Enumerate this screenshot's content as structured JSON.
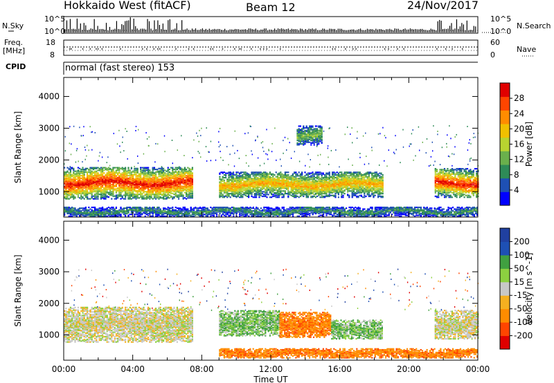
{
  "header": {
    "station": "Hokkaido West (fitACF)",
    "beam": "Beam 12",
    "date": "24/Nov/2017"
  },
  "top_panels": {
    "nsky_label": "N.Sky",
    "nsearch_label": "N.Search",
    "freq_label_1": "Freq.",
    "freq_label_2": "[MHz]",
    "nave_label": "Nave",
    "cpid_label": "CPID",
    "cpid_value": "normal (fast stereo) 153",
    "noise_left_ticks": [
      "10^5",
      "10^0"
    ],
    "noise_right_ticks": [
      "10^5",
      "10^0"
    ],
    "freq_ticks": [
      "18",
      "8"
    ],
    "nave_ticks": [
      "60",
      "0"
    ]
  },
  "colors": {
    "power_scale": [
      "#0000ff",
      "#1e50b4",
      "#2e8b57",
      "#6ab04c",
      "#b8d430",
      "#f0c000",
      "#ff8c00",
      "#ff4500",
      "#e00000"
    ],
    "velocity_scale": [
      "#e00000",
      "#ff4500",
      "#ff8c00",
      "#f5b020",
      "#c8c8c8",
      "#8cd040",
      "#40a040",
      "#1e50b4",
      "#2040a0"
    ]
  },
  "chart_data": [
    {
      "type": "heatmap",
      "panel": "power",
      "xlabel": "Time UT",
      "ylabel": "Slant Range [km]",
      "x_ticks": [
        "00:00",
        "04:00",
        "08:00",
        "12:00",
        "16:00",
        "20:00",
        "00:00"
      ],
      "xlim_hours": [
        0,
        24
      ],
      "y_ticks": [
        1000,
        2000,
        3000,
        4000
      ],
      "ylim": [
        200,
        4600
      ],
      "colorbar_label": "Power [dB]",
      "colorbar_ticks": [
        4,
        8,
        12,
        16,
        20,
        24,
        28
      ],
      "colorbar_range": [
        0,
        32
      ],
      "regions": [
        {
          "t_start": 0.0,
          "t_end": 7.5,
          "range_center": 1300,
          "range_halfwidth": 500,
          "peak": 30
        },
        {
          "t_start": 9.0,
          "t_end": 18.5,
          "range_center": 1250,
          "range_halfwidth": 400,
          "peak": 22
        },
        {
          "t_start": 21.5,
          "t_end": 24.0,
          "range_center": 1300,
          "range_halfwidth": 450,
          "peak": 30
        },
        {
          "t_start": 13.5,
          "t_end": 15.0,
          "range_center": 2800,
          "range_halfwidth": 300,
          "peak": 14
        },
        {
          "t_start": 0.0,
          "t_end": 24.0,
          "range_center": 400,
          "range_halfwidth": 150,
          "peak": 10
        }
      ]
    },
    {
      "type": "heatmap",
      "panel": "velocity",
      "xlabel": "Time UT",
      "ylabel": "Slant Range [km]",
      "x_ticks": [
        "00:00",
        "04:00",
        "08:00",
        "12:00",
        "16:00",
        "20:00",
        "00:00"
      ],
      "xlim_hours": [
        0,
        24
      ],
      "y_ticks": [
        1000,
        2000,
        3000,
        4000
      ],
      "ylim": [
        200,
        4600
      ],
      "colorbar_label": "Velocity [m s^-1]",
      "colorbar_ticks": [
        "200",
        "100",
        "50",
        "15",
        "-15",
        "-50",
        "-100",
        "-200"
      ],
      "regions": [
        {
          "t_start": 0.0,
          "t_end": 7.5,
          "range_center": 1350,
          "range_halfwidth": 550,
          "velocity": 0
        },
        {
          "t_start": 9.0,
          "t_end": 12.5,
          "range_center": 1400,
          "range_halfwidth": 400,
          "velocity": 30
        },
        {
          "t_start": 12.5,
          "t_end": 15.5,
          "range_center": 1350,
          "range_halfwidth": 400,
          "velocity": -60
        },
        {
          "t_start": 15.5,
          "t_end": 18.5,
          "range_center": 1200,
          "range_halfwidth": 300,
          "velocity": 30
        },
        {
          "t_start": 21.5,
          "t_end": 24.0,
          "range_center": 1350,
          "range_halfwidth": 450,
          "velocity": 0
        },
        {
          "t_start": 9.0,
          "t_end": 24.0,
          "range_center": 450,
          "range_halfwidth": 150,
          "velocity": -60
        }
      ]
    }
  ]
}
